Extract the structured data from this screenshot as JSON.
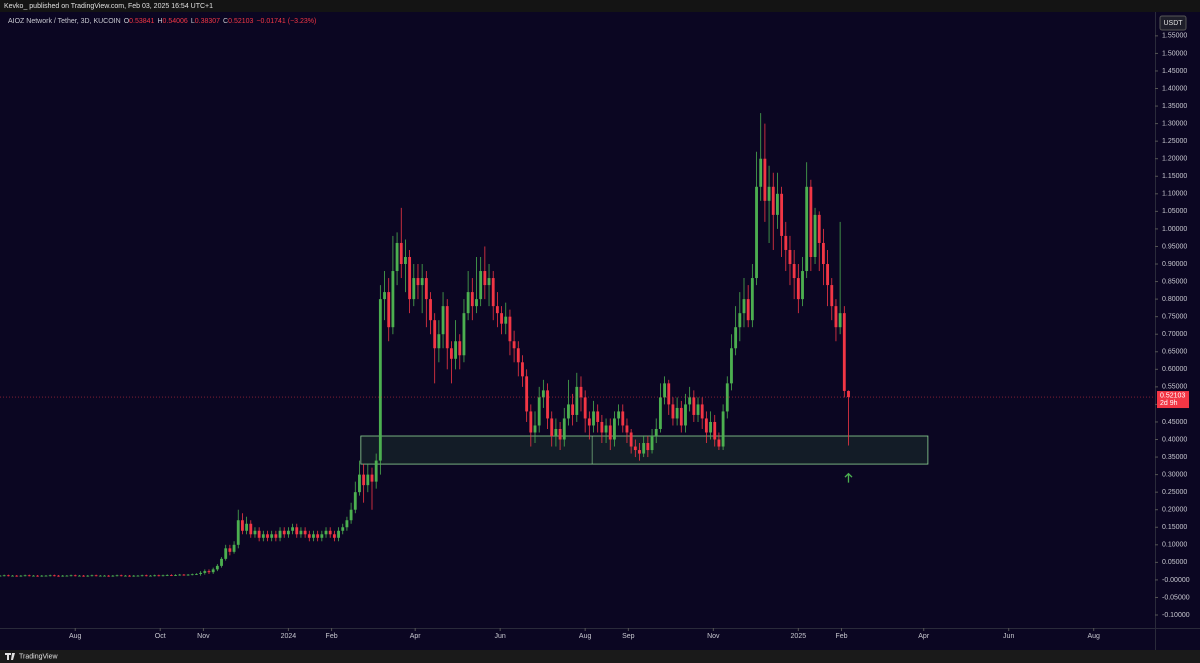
{
  "header": "Kevko_ published on TradingView.com, Feb 03, 2025 16:54 UTC+1",
  "footer": "TradingView",
  "currency": "USDT",
  "countdown": "2d 9h",
  "chart_data": {
    "type": "candlestick",
    "title": "AIOZ Network / Tether, 3D, KUCOIN",
    "ohlc_legend": [
      {
        "key": "O",
        "value": "0.53841"
      },
      {
        "key": "H",
        "value": "0.54006"
      },
      {
        "key": "L",
        "value": "0.38307"
      },
      {
        "key": "C",
        "value": "0.52103"
      }
    ],
    "change": "−0.01741 (−3.23%)",
    "up_color": "#4caf50",
    "down_color": "#f23645",
    "background": "#0b0622",
    "grid": false,
    "xlim": [
      -207,
      622
    ],
    "xticks": [
      {
        "value": -153,
        "label": "Aug"
      },
      {
        "value": -92,
        "label": "Oct"
      },
      {
        "value": -61,
        "label": "Nov"
      },
      {
        "value": 0,
        "label": "2024"
      },
      {
        "value": 31,
        "label": "Feb"
      },
      {
        "value": 91,
        "label": "Apr"
      },
      {
        "value": 152,
        "label": "Jun"
      },
      {
        "value": 213,
        "label": "Aug"
      },
      {
        "value": 244,
        "label": "Sep"
      },
      {
        "value": 305,
        "label": "Nov"
      },
      {
        "value": 366,
        "label": "2025"
      },
      {
        "value": 397,
        "label": "Feb"
      },
      {
        "value": 456,
        "label": "Apr"
      },
      {
        "value": 517,
        "label": "Jun"
      },
      {
        "value": 578,
        "label": "Aug"
      }
    ],
    "ylim": [
      -0.137,
      1.618
    ],
    "yticks": [
      {
        "value": 1.55,
        "label": "1.55000"
      },
      {
        "value": 1.5,
        "label": "1.50000"
      },
      {
        "value": 1.45,
        "label": "1.45000"
      },
      {
        "value": 1.4,
        "label": "1.40000"
      },
      {
        "value": 1.35,
        "label": "1.35000"
      },
      {
        "value": 1.3,
        "label": "1.30000"
      },
      {
        "value": 1.25,
        "label": "1.25000"
      },
      {
        "value": 1.2,
        "label": "1.20000"
      },
      {
        "value": 1.15,
        "label": "1.15000"
      },
      {
        "value": 1.1,
        "label": "1.10000"
      },
      {
        "value": 1.05,
        "label": "1.05000"
      },
      {
        "value": 1.0,
        "label": "1.00000"
      },
      {
        "value": 0.95,
        "label": "0.95000"
      },
      {
        "value": 0.9,
        "label": "0.90000"
      },
      {
        "value": 0.85,
        "label": "0.85000"
      },
      {
        "value": 0.8,
        "label": "0.80000"
      },
      {
        "value": 0.75,
        "label": "0.75000"
      },
      {
        "value": 0.7,
        "label": "0.70000"
      },
      {
        "value": 0.65,
        "label": "0.65000"
      },
      {
        "value": 0.6,
        "label": "0.60000"
      },
      {
        "value": 0.55,
        "label": "0.55000"
      },
      {
        "value": 0.5,
        "label": "0.50000"
      },
      {
        "value": 0.45,
        "label": "0.45000"
      },
      {
        "value": 0.4,
        "label": "0.40000"
      },
      {
        "value": 0.35,
        "label": "0.35000"
      },
      {
        "value": 0.3,
        "label": "0.30000"
      },
      {
        "value": 0.25,
        "label": "0.25000"
      },
      {
        "value": 0.2,
        "label": "0.20000"
      },
      {
        "value": 0.15,
        "label": "0.15000"
      },
      {
        "value": 0.1,
        "label": "0.10000"
      },
      {
        "value": 0.05,
        "label": "0.05000"
      },
      {
        "value": 0,
        "label": "-0.00000"
      },
      {
        "value": -0.05,
        "label": "-0.05000"
      },
      {
        "value": -0.1,
        "label": "-0.10000"
      }
    ],
    "zone": {
      "x": [
        52,
        459
      ],
      "divider": 218,
      "low": 0.33,
      "high": 0.41
    },
    "arrow": {
      "x": 402,
      "y": 0.28
    },
    "x": [
      -207,
      -204,
      -201,
      -198,
      -195,
      -192,
      -189,
      -186,
      -183,
      -180,
      -177,
      -174,
      -171,
      -168,
      -165,
      -162,
      -159,
      -156,
      -153,
      -150,
      -147,
      -144,
      -141,
      -138,
      -135,
      -132,
      -129,
      -126,
      -123,
      -120,
      -117,
      -114,
      -111,
      -108,
      -105,
      -102,
      -99,
      -96,
      -93,
      -90,
      -87,
      -84,
      -81,
      -78,
      -75,
      -72,
      -69,
      -66,
      -63,
      -60,
      -57,
      -54,
      -51,
      -48,
      -45,
      -42,
      -39,
      -36,
      -33,
      -30,
      -27,
      -24,
      -21,
      -18,
      -15,
      -12,
      -9,
      -6,
      -3,
      0,
      3,
      6,
      9,
      12,
      15,
      18,
      21,
      24,
      27,
      30,
      33,
      36,
      39,
      42,
      45,
      48,
      51,
      54,
      57,
      60,
      63,
      66,
      69,
      72,
      75,
      78,
      81,
      84,
      87,
      90,
      93,
      96,
      99,
      102,
      105,
      108,
      111,
      114,
      117,
      120,
      123,
      126,
      129,
      132,
      135,
      138,
      141,
      144,
      147,
      150,
      153,
      156,
      159,
      162,
      165,
      168,
      171,
      174,
      177,
      180,
      183,
      186,
      189,
      192,
      195,
      198,
      201,
      204,
      207,
      210,
      213,
      216,
      219,
      222,
      225,
      228,
      231,
      234,
      237,
      240,
      243,
      246,
      249,
      252,
      255,
      258,
      261,
      264,
      267,
      270,
      273,
      276,
      279,
      282,
      285,
      288,
      291,
      294,
      297,
      300,
      303,
      306,
      309,
      312,
      315,
      318,
      321,
      324,
      327,
      330,
      333,
      336,
      339,
      342,
      345,
      348,
      351,
      354,
      357,
      360,
      363,
      366,
      369,
      372,
      375,
      378,
      381,
      384,
      387,
      390,
      393,
      396,
      399,
      402
    ],
    "open": [
      0.012,
      0.012,
      0.013,
      0.012,
      0.012,
      0.011,
      0.012,
      0.013,
      0.012,
      0.012,
      0.011,
      0.012,
      0.012,
      0.013,
      0.012,
      0.011,
      0.012,
      0.012,
      0.013,
      0.012,
      0.012,
      0.011,
      0.012,
      0.013,
      0.012,
      0.012,
      0.012,
      0.011,
      0.012,
      0.013,
      0.012,
      0.012,
      0.011,
      0.012,
      0.012,
      0.013,
      0.012,
      0.012,
      0.013,
      0.012,
      0.013,
      0.014,
      0.013,
      0.014,
      0.015,
      0.014,
      0.015,
      0.016,
      0.017,
      0.02,
      0.025,
      0.022,
      0.03,
      0.04,
      0.06,
      0.09,
      0.08,
      0.1,
      0.17,
      0.14,
      0.16,
      0.13,
      0.14,
      0.12,
      0.13,
      0.12,
      0.13,
      0.12,
      0.14,
      0.13,
      0.14,
      0.15,
      0.13,
      0.14,
      0.13,
      0.12,
      0.13,
      0.12,
      0.13,
      0.14,
      0.13,
      0.12,
      0.14,
      0.15,
      0.17,
      0.2,
      0.25,
      0.3,
      0.27,
      0.3,
      0.28,
      0.34,
      0.8,
      0.82,
      0.72,
      0.88,
      0.96,
      0.9,
      0.92,
      0.8,
      0.86,
      0.84,
      0.86,
      0.8,
      0.74,
      0.66,
      0.7,
      0.78,
      0.66,
      0.63,
      0.68,
      0.64,
      0.76,
      0.82,
      0.78,
      0.8,
      0.88,
      0.84,
      0.86,
      0.78,
      0.76,
      0.73,
      0.75,
      0.68,
      0.66,
      0.62,
      0.58,
      0.48,
      0.42,
      0.44,
      0.52,
      0.54,
      0.46,
      0.41,
      0.43,
      0.4,
      0.46,
      0.5,
      0.47,
      0.55,
      0.52,
      0.46,
      0.44,
      0.48,
      0.45,
      0.42,
      0.44,
      0.4,
      0.46,
      0.48,
      0.44,
      0.42,
      0.38,
      0.37,
      0.36,
      0.39,
      0.37,
      0.41,
      0.43,
      0.52,
      0.56,
      0.5,
      0.46,
      0.49,
      0.44,
      0.5,
      0.52,
      0.47,
      0.5,
      0.46,
      0.42,
      0.45,
      0.4,
      0.38,
      0.48,
      0.56,
      0.66,
      0.72,
      0.76,
      0.8,
      0.74,
      0.86,
      1.12,
      1.2,
      1.08,
      1.12,
      1.04,
      1.1,
      0.98,
      0.94,
      0.9,
      0.86,
      0.8,
      0.88,
      1.12,
      0.92,
      1.04,
      0.96,
      0.9,
      0.84,
      0.78,
      0.72,
      0.76,
      0.53841
    ],
    "high": [
      0.014,
      0.015,
      0.015,
      0.014,
      0.014,
      0.014,
      0.015,
      0.015,
      0.014,
      0.014,
      0.014,
      0.014,
      0.015,
      0.015,
      0.014,
      0.014,
      0.014,
      0.015,
      0.015,
      0.014,
      0.014,
      0.014,
      0.015,
      0.015,
      0.014,
      0.014,
      0.014,
      0.014,
      0.015,
      0.015,
      0.014,
      0.014,
      0.014,
      0.014,
      0.015,
      0.015,
      0.014,
      0.015,
      0.015,
      0.015,
      0.016,
      0.016,
      0.016,
      0.017,
      0.017,
      0.017,
      0.018,
      0.019,
      0.025,
      0.03,
      0.03,
      0.035,
      0.045,
      0.065,
      0.1,
      0.1,
      0.11,
      0.2,
      0.19,
      0.18,
      0.17,
      0.15,
      0.15,
      0.14,
      0.14,
      0.14,
      0.14,
      0.15,
      0.15,
      0.15,
      0.16,
      0.16,
      0.15,
      0.15,
      0.14,
      0.14,
      0.14,
      0.14,
      0.15,
      0.15,
      0.14,
      0.15,
      0.16,
      0.18,
      0.22,
      0.28,
      0.34,
      0.33,
      0.33,
      0.32,
      0.36,
      0.84,
      0.88,
      0.86,
      0.98,
      0.99,
      1.06,
      0.97,
      0.94,
      0.9,
      0.9,
      0.9,
      0.88,
      0.82,
      0.76,
      0.74,
      0.82,
      0.8,
      0.68,
      0.74,
      0.7,
      0.8,
      0.88,
      0.86,
      0.92,
      0.92,
      0.95,
      0.9,
      0.88,
      0.82,
      0.78,
      0.79,
      0.77,
      0.71,
      0.68,
      0.64,
      0.6,
      0.5,
      0.48,
      0.55,
      0.57,
      0.56,
      0.48,
      0.46,
      0.45,
      0.49,
      0.57,
      0.53,
      0.59,
      0.58,
      0.54,
      0.48,
      0.51,
      0.5,
      0.47,
      0.46,
      0.46,
      0.48,
      0.5,
      0.5,
      0.46,
      0.43,
      0.4,
      0.39,
      0.41,
      0.41,
      0.43,
      0.46,
      0.56,
      0.58,
      0.57,
      0.52,
      0.52,
      0.51,
      0.53,
      0.55,
      0.54,
      0.52,
      0.52,
      0.48,
      0.48,
      0.47,
      0.42,
      0.5,
      0.58,
      0.7,
      0.78,
      0.82,
      0.86,
      0.84,
      0.9,
      1.22,
      1.33,
      1.3,
      1.18,
      1.16,
      1.16,
      1.12,
      1.02,
      0.98,
      0.94,
      0.9,
      0.92,
      1.19,
      1.14,
      1.06,
      1.05,
      1.0,
      0.94,
      0.86,
      0.8,
      1.02,
      0.78,
      0.54006
    ],
    "low": [
      0.01,
      0.01,
      0.01,
      0.01,
      0.009,
      0.009,
      0.01,
      0.01,
      0.01,
      0.009,
      0.009,
      0.01,
      0.01,
      0.01,
      0.009,
      0.009,
      0.01,
      0.01,
      0.01,
      0.01,
      0.009,
      0.009,
      0.01,
      0.01,
      0.01,
      0.01,
      0.009,
      0.009,
      0.01,
      0.01,
      0.01,
      0.009,
      0.009,
      0.01,
      0.01,
      0.01,
      0.01,
      0.01,
      0.01,
      0.01,
      0.011,
      0.011,
      0.011,
      0.012,
      0.012,
      0.012,
      0.013,
      0.014,
      0.012,
      0.015,
      0.017,
      0.017,
      0.025,
      0.035,
      0.055,
      0.07,
      0.075,
      0.09,
      0.13,
      0.13,
      0.12,
      0.12,
      0.11,
      0.11,
      0.11,
      0.11,
      0.11,
      0.11,
      0.12,
      0.12,
      0.13,
      0.12,
      0.12,
      0.12,
      0.11,
      0.11,
      0.11,
      0.11,
      0.12,
      0.12,
      0.11,
      0.11,
      0.13,
      0.14,
      0.16,
      0.19,
      0.24,
      0.22,
      0.25,
      0.2,
      0.26,
      0.3,
      0.74,
      0.68,
      0.7,
      0.84,
      0.86,
      0.82,
      0.76,
      0.78,
      0.8,
      0.76,
      0.72,
      0.7,
      0.56,
      0.62,
      0.66,
      0.6,
      0.56,
      0.6,
      0.6,
      0.62,
      0.74,
      0.74,
      0.76,
      0.78,
      0.8,
      0.78,
      0.74,
      0.72,
      0.7,
      0.7,
      0.64,
      0.62,
      0.58,
      0.55,
      0.45,
      0.38,
      0.39,
      0.42,
      0.49,
      0.43,
      0.38,
      0.38,
      0.37,
      0.38,
      0.44,
      0.44,
      0.45,
      0.48,
      0.42,
      0.4,
      0.42,
      0.42,
      0.39,
      0.39,
      0.37,
      0.38,
      0.44,
      0.42,
      0.39,
      0.36,
      0.35,
      0.34,
      0.35,
      0.35,
      0.36,
      0.39,
      0.42,
      0.5,
      0.47,
      0.44,
      0.44,
      0.42,
      0.42,
      0.48,
      0.45,
      0.45,
      0.43,
      0.39,
      0.4,
      0.38,
      0.37,
      0.37,
      0.46,
      0.54,
      0.64,
      0.68,
      0.72,
      0.72,
      0.72,
      0.84,
      1.08,
      1.02,
      0.96,
      0.94,
      1.0,
      0.92,
      0.88,
      0.84,
      0.8,
      0.76,
      0.78,
      0.86,
      0.88,
      0.9,
      0.88,
      0.84,
      0.78,
      0.74,
      0.68,
      0.7,
      0.52,
      0.38307
    ],
    "close": [
      0.012,
      0.013,
      0.012,
      0.012,
      0.011,
      0.012,
      0.013,
      0.012,
      0.012,
      0.011,
      0.012,
      0.012,
      0.013,
      0.012,
      0.011,
      0.012,
      0.012,
      0.013,
      0.012,
      0.012,
      0.011,
      0.012,
      0.013,
      0.012,
      0.012,
      0.012,
      0.011,
      0.012,
      0.013,
      0.012,
      0.012,
      0.011,
      0.012,
      0.012,
      0.013,
      0.012,
      0.012,
      0.013,
      0.012,
      0.013,
      0.014,
      0.013,
      0.014,
      0.015,
      0.014,
      0.015,
      0.016,
      0.017,
      0.02,
      0.025,
      0.022,
      0.03,
      0.04,
      0.06,
      0.09,
      0.08,
      0.1,
      0.17,
      0.14,
      0.16,
      0.13,
      0.14,
      0.12,
      0.13,
      0.12,
      0.13,
      0.12,
      0.14,
      0.13,
      0.14,
      0.15,
      0.13,
      0.14,
      0.13,
      0.12,
      0.13,
      0.12,
      0.13,
      0.14,
      0.13,
      0.12,
      0.14,
      0.15,
      0.17,
      0.2,
      0.25,
      0.3,
      0.27,
      0.3,
      0.28,
      0.34,
      0.8,
      0.82,
      0.72,
      0.88,
      0.96,
      0.9,
      0.92,
      0.8,
      0.86,
      0.84,
      0.86,
      0.8,
      0.74,
      0.66,
      0.7,
      0.78,
      0.66,
      0.63,
      0.68,
      0.64,
      0.76,
      0.82,
      0.78,
      0.8,
      0.88,
      0.84,
      0.86,
      0.78,
      0.76,
      0.73,
      0.75,
      0.68,
      0.66,
      0.62,
      0.58,
      0.48,
      0.42,
      0.44,
      0.52,
      0.54,
      0.46,
      0.41,
      0.43,
      0.4,
      0.46,
      0.5,
      0.47,
      0.55,
      0.52,
      0.46,
      0.44,
      0.48,
      0.45,
      0.42,
      0.44,
      0.4,
      0.46,
      0.48,
      0.44,
      0.42,
      0.38,
      0.37,
      0.36,
      0.39,
      0.37,
      0.41,
      0.43,
      0.52,
      0.56,
      0.5,
      0.46,
      0.49,
      0.44,
      0.5,
      0.52,
      0.47,
      0.5,
      0.46,
      0.42,
      0.45,
      0.4,
      0.38,
      0.48,
      0.56,
      0.66,
      0.72,
      0.76,
      0.8,
      0.74,
      0.86,
      1.12,
      1.2,
      1.08,
      1.12,
      1.04,
      1.1,
      0.98,
      0.94,
      0.9,
      0.86,
      0.8,
      0.88,
      1.12,
      0.92,
      1.04,
      0.96,
      0.9,
      0.84,
      0.78,
      0.72,
      0.76,
      0.53844,
      0.52103
    ]
  }
}
